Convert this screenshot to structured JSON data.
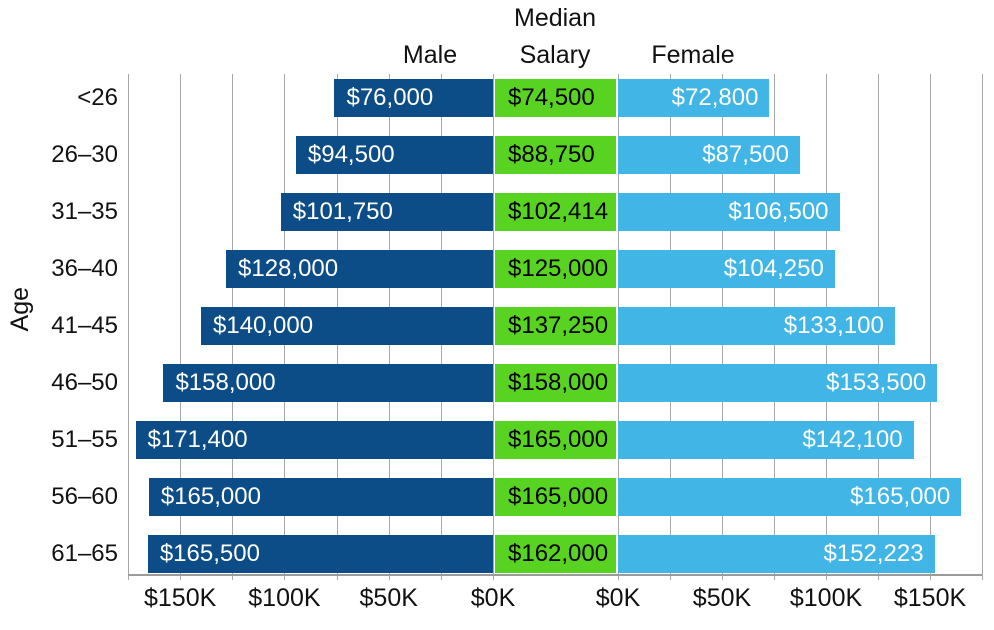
{
  "headers": {
    "male": "Male",
    "median_line1": "Median",
    "median_line2": "Salary",
    "female": "Female"
  },
  "axis": {
    "y_title": "Age",
    "left_ticks": [
      {
        "value": 150000,
        "label": "$150K"
      },
      {
        "value": 100000,
        "label": "$100K"
      },
      {
        "value": 50000,
        "label": "$50K"
      },
      {
        "value": 0,
        "label": "$0K"
      }
    ],
    "right_ticks": [
      {
        "value": 0,
        "label": "$0K"
      },
      {
        "value": 50000,
        "label": "$50K"
      },
      {
        "value": 100000,
        "label": "$100K"
      },
      {
        "value": 150000,
        "label": "$150K"
      }
    ]
  },
  "colors": {
    "male_bar": "#0c4c87",
    "median_cell": "#59d321",
    "female_bar": "#41b6e6",
    "gridline": "#a8a8a8",
    "axis_line": "#9b9b9b",
    "label_on_bar": "#ffffff",
    "label_on_median": "#000000",
    "text": "#111111"
  },
  "chart_data": {
    "type": "bar",
    "variant": "population-pyramid",
    "title": "",
    "ylabel": "Age",
    "xlabel": "",
    "xlim": [
      0,
      175000
    ],
    "gridline_step": 25000,
    "grid": true,
    "categories": [
      "<26",
      "26–30",
      "31–35",
      "36–40",
      "41–45",
      "46–50",
      "51–55",
      "56–60",
      "61–65"
    ],
    "series": [
      {
        "name": "Male",
        "side": "left",
        "values": [
          76000,
          94500,
          101750,
          128000,
          140000,
          158000,
          171400,
          165000,
          165500
        ],
        "labels": [
          "$76,000",
          "$94,500",
          "$101,750",
          "$128,000",
          "$140,000",
          "$158,000",
          "$171,400",
          "$165,000",
          "$165,500"
        ]
      },
      {
        "name": "Median Salary",
        "side": "center",
        "values": [
          74500,
          88750,
          102414,
          125000,
          137250,
          158000,
          165000,
          165000,
          162000
        ],
        "labels": [
          "$74,500",
          "$88,750",
          "$102,414",
          "$125,000",
          "$137,250",
          "$158,000",
          "$165,000",
          "$165,000",
          "$162,000"
        ]
      },
      {
        "name": "Female",
        "side": "right",
        "values": [
          72800,
          87500,
          106500,
          104250,
          133100,
          153500,
          142100,
          165000,
          152223
        ],
        "labels": [
          "$72,800",
          "$87,500",
          "$106,500",
          "$104,250",
          "$133,100",
          "$153,500",
          "$142,100",
          "$165,000",
          "$152,223"
        ]
      }
    ]
  }
}
